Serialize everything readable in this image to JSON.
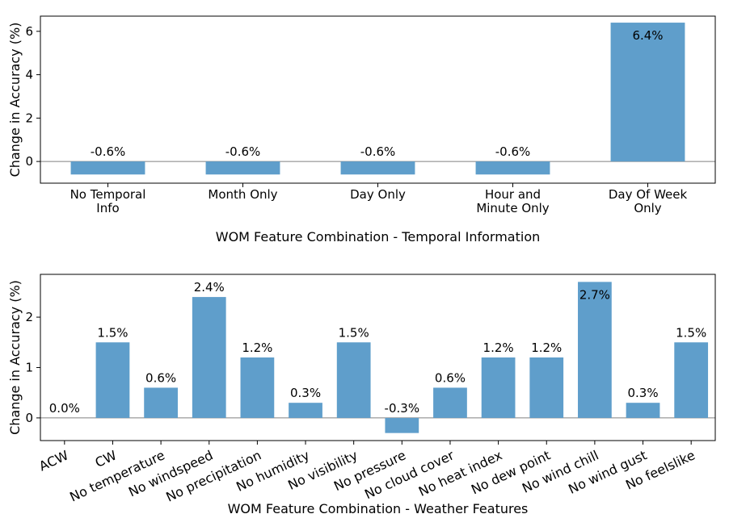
{
  "colors": {
    "bar": "#5f9ecb",
    "axis": "#000000",
    "zero_line": "#808080",
    "background": "#ffffff"
  },
  "chart_data": [
    {
      "type": "bar",
      "title": "",
      "xlabel": "WOM Feature Combination - Temporal Information",
      "ylabel": "Change in Accuracy (%)",
      "categories": [
        "No Temporal\nInfo",
        "Month Only",
        "Day Only",
        "Hour and\nMinute Only",
        "Day Of Week\nOnly"
      ],
      "values": [
        -0.6,
        -0.6,
        -0.6,
        -0.6,
        6.4
      ],
      "data_labels": [
        "-0.6%",
        "-0.6%",
        "-0.6%",
        "-0.6%",
        "6.4%"
      ],
      "yticks": [
        "0",
        "2",
        "4",
        "6"
      ],
      "ylim": [
        -1.0,
        6.7
      ],
      "grid": false,
      "legend": "none"
    },
    {
      "type": "bar",
      "title": "",
      "xlabel": "WOM Feature Combination - Weather Features",
      "ylabel": "Change in Accuracy (%)",
      "categories": [
        "ACW",
        "CW",
        "No temperature",
        "No windspeed",
        "No precipitation",
        "No humidity",
        "No visibility",
        "No pressure",
        "No cloud cover",
        "No heat index",
        "No dew point",
        "No wind chill",
        "No wind gust",
        "No feelslike"
      ],
      "values": [
        0.0,
        1.5,
        0.6,
        2.4,
        1.2,
        0.3,
        1.5,
        -0.3,
        0.6,
        1.2,
        1.2,
        2.7,
        0.3,
        1.5
      ],
      "data_labels": [
        "0.0%",
        "1.5%",
        "0.6%",
        "2.4%",
        "1.2%",
        "0.3%",
        "1.5%",
        "-0.3%",
        "0.6%",
        "1.2%",
        "1.2%",
        "2.7%",
        "0.3%",
        "1.5%"
      ],
      "yticks": [
        "0",
        "1",
        "2"
      ],
      "ylim": [
        -0.45,
        2.85
      ],
      "grid": false,
      "legend": "none"
    }
  ]
}
